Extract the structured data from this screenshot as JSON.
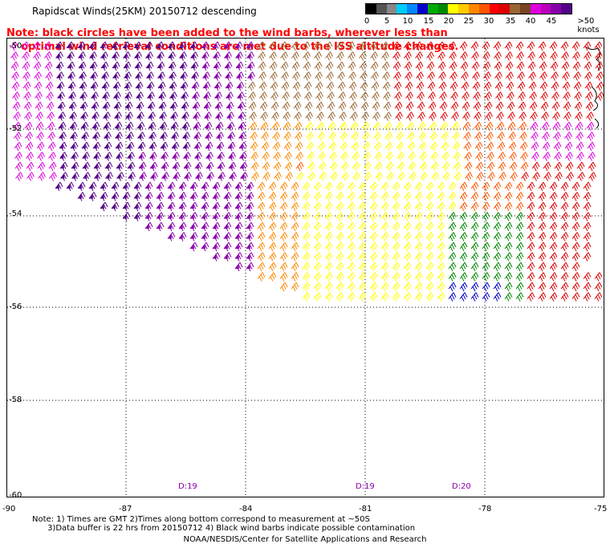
{
  "header": {
    "title": "Rapidscat Winds(25KM) 20150712 descending",
    "note_line1": "Note: black circles have been added to the wind barbs, wherever less than",
    "note_line2": "    optimal wind retrieval conditions are met due to the ISS altitude changes."
  },
  "legend": {
    "colors": [
      "#000000",
      "#555555",
      "#888888",
      "#00ccff",
      "#0088ff",
      "#0000cc",
      "#00aa00",
      "#008800",
      "#ffff00",
      "#ffcc00",
      "#ff8800",
      "#ff5500",
      "#ff0000",
      "#dd0000",
      "#996633",
      "#774422",
      "#dd00dd",
      "#bb00bb",
      "#8800aa",
      "#550088"
    ],
    "labels": [
      "0",
      "5",
      "10",
      "15",
      "20",
      "25",
      "30",
      "35",
      "40",
      "45",
      ">50 knots"
    ]
  },
  "map": {
    "lat_labels": [
      "-50",
      "-52",
      "-54",
      "-56",
      "-58",
      "-60"
    ],
    "lon_labels": [
      "-90",
      "-87",
      "-84",
      "-81",
      "-78",
      "-75"
    ],
    "pass_labels": [
      "D:19",
      "D:19",
      "D:20"
    ],
    "lon_range": [
      -90,
      -75
    ],
    "lat_range": [
      -60,
      -50
    ]
  },
  "footer": {
    "notes_line1": "Note: 1) Times are GMT 2)Times along bottom correspond to measurement at ~50S",
    "notes_line2": "      3)Data buffer is 22 hrs from 20150712 4) Black wind barbs indicate possible contamination",
    "credit": "NOAA/NESDIS/Center for Satellite Applications and Research"
  }
}
